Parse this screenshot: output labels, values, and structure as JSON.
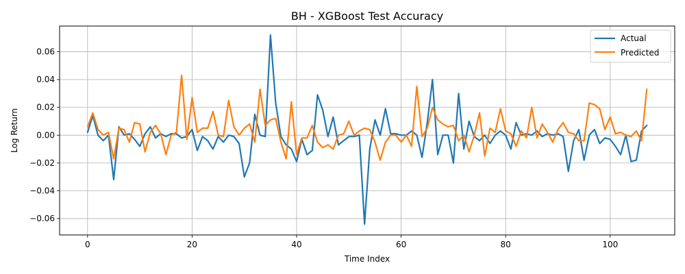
{
  "chart_data": {
    "type": "line",
    "title": "BH - XGBoost Test Accuracy",
    "xlabel": "Time Index",
    "ylabel": "Log Return",
    "xlim": [
      -5.35,
      112.35
    ],
    "ylim": [
      -0.0718,
      0.0785
    ],
    "xticks": [
      0,
      20,
      40,
      60,
      80,
      100
    ],
    "yticks": [
      -0.06,
      -0.04,
      -0.02,
      0.0,
      0.02,
      0.04,
      0.06
    ],
    "xtick_labels": [
      "0",
      "20",
      "40",
      "60",
      "80",
      "100"
    ],
    "ytick_labels": [
      "−0.06",
      "−0.04",
      "−0.02",
      "0.00",
      "0.02",
      "0.04",
      "0.06"
    ],
    "grid": true,
    "legend_position": "upper-right",
    "series": [
      {
        "name": "Actual",
        "color": "#1f77b4",
        "values": [
          0.002,
          0.014,
          0.0,
          -0.004,
          0.0,
          -0.032,
          0.006,
          0.0,
          0.001,
          -0.003,
          -0.008,
          0.001,
          0.006,
          -0.002,
          0.001,
          -0.001,
          0.001,
          0.001,
          -0.002,
          -0.001,
          0.004,
          -0.011,
          -0.001,
          -0.004,
          -0.01,
          -0.001,
          -0.005,
          0.0,
          -0.001,
          -0.006,
          -0.03,
          -0.02,
          0.015,
          0.0,
          -0.001,
          0.072,
          0.023,
          -0.001,
          -0.007,
          -0.01,
          -0.019,
          -0.003,
          -0.014,
          -0.011,
          0.029,
          0.018,
          -0.001,
          0.013,
          -0.007,
          -0.004,
          -0.001,
          -0.001,
          0.0,
          -0.064,
          -0.01,
          0.011,
          0.0,
          0.019,
          0.001,
          0.001,
          0.0,
          0.0,
          0.003,
          0.0,
          -0.016,
          0.009,
          0.04,
          -0.014,
          0.0,
          0.0,
          -0.02,
          0.03,
          -0.01,
          0.01,
          -0.001,
          -0.004,
          0.0,
          -0.006,
          0.0,
          0.003,
          0.0,
          -0.01,
          0.009,
          0.0,
          0.001,
          0.0,
          0.003,
          -0.001,
          0.001,
          0.0,
          0.001,
          -0.001,
          -0.026,
          -0.004,
          0.004,
          -0.018,
          0.0,
          0.004,
          -0.006,
          -0.002,
          -0.003,
          -0.008,
          -0.014,
          0.0,
          -0.019,
          -0.018,
          0.003,
          0.007
        ]
      },
      {
        "name": "Predicted",
        "color": "#ff7f0e",
        "values": [
          0.006,
          0.016,
          0.004,
          0.0,
          0.002,
          -0.017,
          0.005,
          0.004,
          -0.005,
          0.009,
          0.008,
          -0.012,
          0.002,
          0.007,
          0.001,
          -0.014,
          0.0,
          0.002,
          0.043,
          -0.003,
          0.027,
          0.002,
          0.005,
          0.005,
          0.017,
          0.0,
          -0.001,
          0.025,
          0.006,
          0.0,
          0.005,
          0.008,
          -0.005,
          0.033,
          0.007,
          0.011,
          0.012,
          -0.005,
          -0.017,
          0.024,
          -0.014,
          -0.002,
          -0.002,
          0.007,
          -0.005,
          -0.009,
          -0.007,
          -0.01,
          0.0,
          0.001,
          0.01,
          0.0,
          0.003,
          0.005,
          0.004,
          -0.005,
          -0.018,
          -0.005,
          0.0,
          0.0,
          -0.005,
          0.0,
          -0.008,
          0.035,
          -0.001,
          0.005,
          0.02,
          0.011,
          0.008,
          0.006,
          0.007,
          -0.004,
          0.0,
          -0.012,
          0.0,
          0.016,
          -0.015,
          0.005,
          0.002,
          0.019,
          0.003,
          0.001,
          -0.008,
          0.003,
          -0.002,
          0.02,
          -0.002,
          0.008,
          0.002,
          -0.005,
          0.004,
          0.009,
          0.002,
          0.001,
          -0.004,
          -0.004,
          0.023,
          0.022,
          0.019,
          0.004,
          0.013,
          0.001,
          0.002,
          0.0,
          -0.001,
          0.003,
          -0.004,
          0.033
        ]
      }
    ]
  }
}
